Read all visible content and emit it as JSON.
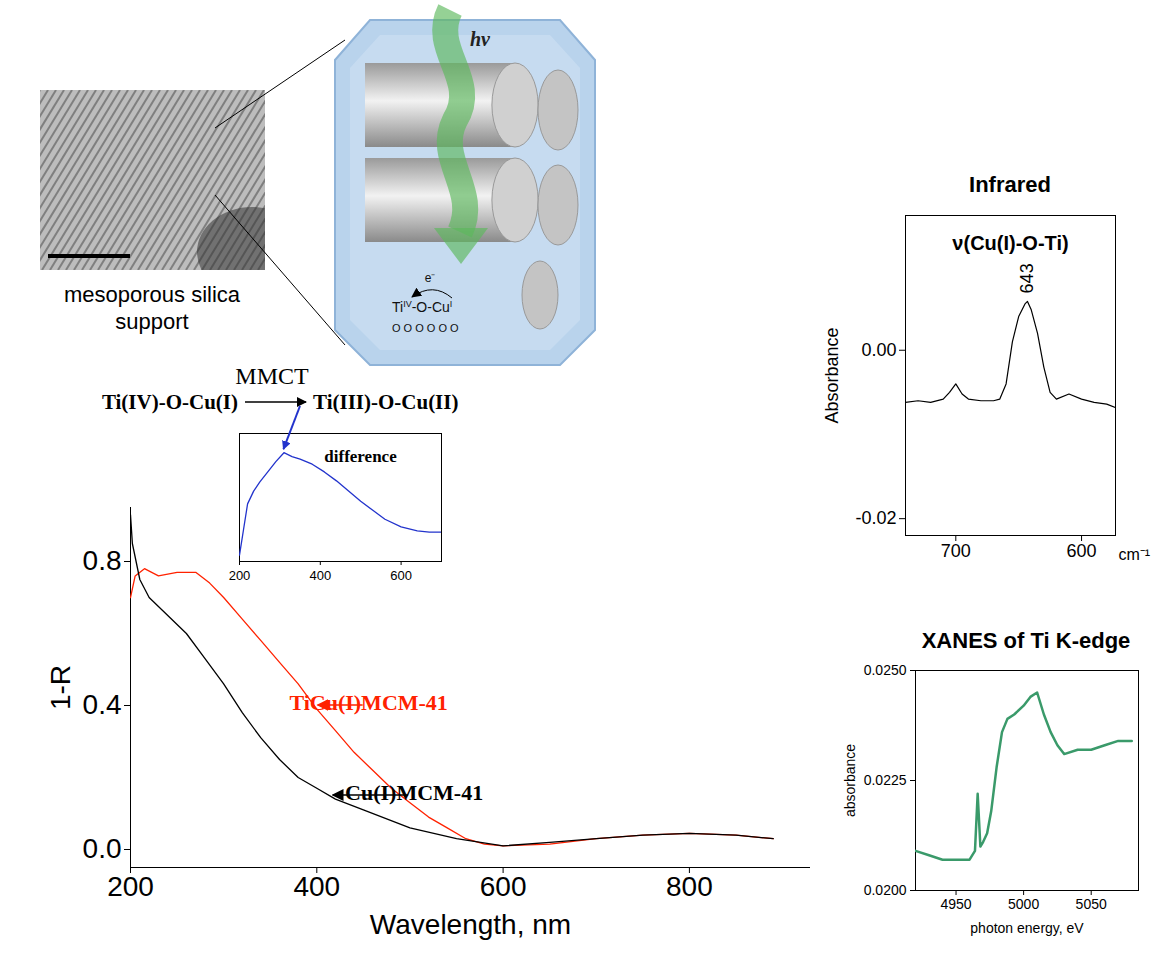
{
  "diagram": {
    "tem_caption": "mesoporous silica support",
    "schematic": {
      "light": "hν",
      "electron": "e⁻",
      "site": [
        {
          "text": "Ti",
          "sup": "IV"
        },
        {
          "text": "-O-"
        },
        {
          "text": "Cu",
          "sup": "I"
        }
      ],
      "surface": "O O O  O O O"
    },
    "reaction": {
      "label": "MMCT",
      "from": "Ti(IV)-O-Cu(I)",
      "to": "Ti(III)-O-Cu(II)"
    }
  },
  "chart_data": [
    {
      "type": "line",
      "xlabel": "Wavelength, nm",
      "ylabel": "1-R",
      "xlim": [
        200,
        930
      ],
      "xticks": [
        200,
        400,
        600,
        800
      ],
      "ylim": [
        -0.05,
        0.95
      ],
      "yticks": [
        {
          "value": 0,
          "label": "0.0"
        },
        0.4,
        0.8
      ],
      "series": [
        {
          "name": "TiCu(I)MCM-41",
          "color": "#ff2200",
          "x": [
            200,
            205,
            215,
            230,
            250,
            270,
            285,
            300,
            320,
            340,
            360,
            380,
            400,
            420,
            440,
            460,
            480,
            500,
            520,
            540,
            560,
            580,
            600,
            650,
            700,
            750,
            800,
            850,
            890
          ],
          "values": [
            0.7,
            0.76,
            0.78,
            0.76,
            0.77,
            0.77,
            0.74,
            0.7,
            0.64,
            0.58,
            0.52,
            0.46,
            0.39,
            0.33,
            0.27,
            0.22,
            0.17,
            0.13,
            0.09,
            0.06,
            0.03,
            0.015,
            0.01,
            0.015,
            0.03,
            0.04,
            0.045,
            0.04,
            0.03
          ]
        },
        {
          "name": "Cu(I)MCM-41",
          "color": "#000000",
          "x": [
            200,
            202,
            210,
            220,
            240,
            260,
            280,
            300,
            320,
            340,
            360,
            380,
            400,
            420,
            450,
            500,
            550,
            600,
            650,
            700,
            750,
            800,
            850,
            890
          ],
          "values": [
            0.93,
            0.85,
            0.75,
            0.7,
            0.65,
            0.6,
            0.53,
            0.46,
            0.38,
            0.31,
            0.25,
            0.2,
            0.17,
            0.14,
            0.11,
            0.06,
            0.03,
            0.01,
            0.02,
            0.03,
            0.04,
            0.045,
            0.04,
            0.03
          ]
        }
      ]
    },
    {
      "type": "line",
      "title": "difference",
      "tick_labels": "x",
      "color": "#2233cc",
      "xlim": [
        200,
        700
      ],
      "xticks": [
        200,
        400,
        600
      ],
      "ylim": [
        0,
        1
      ],
      "x": [
        200,
        210,
        220,
        235,
        250,
        270,
        290,
        310,
        330,
        350,
        380,
        410,
        440,
        470,
        500,
        530,
        560,
        600,
        640,
        670,
        700
      ],
      "values": [
        0.05,
        0.25,
        0.45,
        0.55,
        0.62,
        0.7,
        0.78,
        0.85,
        0.82,
        0.8,
        0.76,
        0.7,
        0.63,
        0.55,
        0.47,
        0.4,
        0.33,
        0.27,
        0.24,
        0.23,
        0.23
      ]
    },
    {
      "type": "line",
      "title": "Infrared",
      "xlabel": "cm⁻¹",
      "ylabel": "Absorbance",
      "color": "#000000",
      "annotations": [
        {
          "text": "ν(Cu(I)-O-Ti)"
        },
        {
          "text": "643",
          "x": 643
        }
      ],
      "xlim": [
        740,
        573
      ],
      "xticks": [
        700,
        600
      ],
      "ylim": [
        -0.022,
        0.016
      ],
      "yticks": [
        {
          "value": 0,
          "label": "0.00"
        },
        {
          "value": -0.02,
          "label": "-0.02"
        }
      ],
      "x": [
        740,
        730,
        720,
        710,
        705,
        700,
        695,
        690,
        680,
        670,
        665,
        660,
        655,
        650,
        645,
        643,
        640,
        635,
        630,
        625,
        620,
        610,
        600,
        590,
        580,
        573
      ],
      "values": [
        -0.0062,
        -0.006,
        -0.0062,
        -0.0058,
        -0.005,
        -0.004,
        -0.0052,
        -0.0058,
        -0.006,
        -0.006,
        -0.0058,
        -0.004,
        0.001,
        0.004,
        0.0055,
        0.0058,
        0.0048,
        0.002,
        -0.002,
        -0.005,
        -0.0058,
        -0.0052,
        -0.0058,
        -0.0062,
        -0.0064,
        -0.0068
      ]
    },
    {
      "type": "line",
      "title": "XANES of Ti K-edge",
      "xlabel": "photon energy, eV",
      "ylabel": "absorbance",
      "color": "#3a9a6a",
      "xlim": [
        4920,
        5085
      ],
      "xticks": [
        4950,
        5000,
        5050
      ],
      "ylim": [
        0.02,
        0.025
      ],
      "yticks": [
        {
          "value": 0.02,
          "label": "0.0200"
        },
        {
          "value": 0.0225,
          "label": "0.0225"
        },
        {
          "value": 0.025,
          "label": "0.0250"
        }
      ],
      "x": [
        4920,
        4930,
        4940,
        4950,
        4960,
        4964,
        4966,
        4968,
        4970,
        4973,
        4976,
        4980,
        4984,
        4988,
        4993,
        5000,
        5005,
        5010,
        5015,
        5020,
        5025,
        5030,
        5040,
        5050,
        5060,
        5070,
        5080
      ],
      "values": [
        0.0209,
        0.0208,
        0.0207,
        0.0207,
        0.0207,
        0.0209,
        0.0222,
        0.021,
        0.0211,
        0.0213,
        0.0218,
        0.0228,
        0.0236,
        0.0239,
        0.024,
        0.0242,
        0.0244,
        0.0245,
        0.024,
        0.0236,
        0.0233,
        0.0231,
        0.0232,
        0.0232,
        0.0233,
        0.0234,
        0.0234
      ]
    }
  ]
}
